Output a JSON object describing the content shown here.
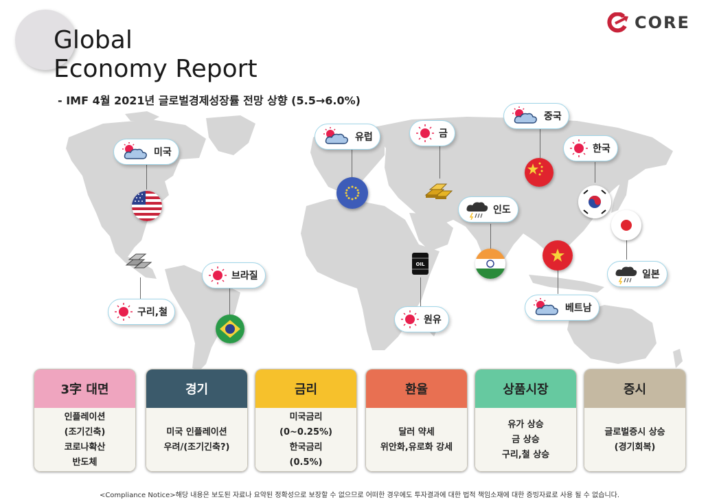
{
  "header": {
    "title_line1": "Global",
    "title_line2": "Economy Report",
    "subtitle": "- IMF 4월 2021년 글로벌경제성장률 전망 상향 (5.5→6.0%)",
    "logo_text": "CORE",
    "logo_color": "#c8233a"
  },
  "map_labels": {
    "usa": "미국",
    "europe": "유럽",
    "gold": "금",
    "china": "중국",
    "korea": "한국",
    "india": "인도",
    "brazil": "브라질",
    "copper_iron": "구리,철",
    "yuan": "원유",
    "vietnam": "베트남",
    "japan": "일본"
  },
  "icons": {
    "usa": "partly-cloudy-icon",
    "europe": "partly-cloudy-icon",
    "gold": "sun-icon",
    "china": "partly-cloudy-icon",
    "korea": "sun-icon",
    "india": "storm-icon",
    "brazil": "sun-icon",
    "copper_iron": "sun-icon",
    "yuan": "sun-icon",
    "vietnam": "partly-cloudy-icon",
    "japan": "storm-icon"
  },
  "cards": [
    {
      "title": "3字 대면",
      "head_color": "#efa5bf",
      "head_text_color": "#222222",
      "lines": [
        "인플레이션",
        "(조기긴축)",
        "코로나확산",
        "반도체"
      ]
    },
    {
      "title": "경기",
      "head_color": "#3b5a6b",
      "head_text_color": "#ffffff",
      "lines": [
        "미국 인플레이션",
        "우려/(조기긴축?)"
      ]
    },
    {
      "title": "금리",
      "head_color": "#f6c12c",
      "head_text_color": "#222222",
      "lines": [
        "미국금리",
        "(0~0.25%)",
        "한국금리",
        "(0.5%)"
      ]
    },
    {
      "title": "환율",
      "head_color": "#e87052",
      "head_text_color": "#222222",
      "lines": [
        "달러 약세",
        "위안화,유로화 강세"
      ]
    },
    {
      "title": "상품시장",
      "head_color": "#66c9a0",
      "head_text_color": "#222222",
      "lines": [
        "유가  상승",
        "금 상승",
        "구리,철 상승"
      ]
    },
    {
      "title": "증시",
      "head_color": "#c5b9a2",
      "head_text_color": "#222222",
      "lines": [
        "글로벌증시 상승",
        "(경기회복)"
      ]
    }
  ],
  "notice": "<Compliance Notice>해당 내용은 보도된 자료나 요약된 정확성으로 보장할 수 없으므로 어떠한 경우에도 투자결과에 대한 법적 책임소재에 대한 증빙자료로 사용 될 수 없습니다.",
  "colors": {
    "map_land": "#d6d6d6",
    "sun": "#e8204e",
    "cloud": "#aac7e8",
    "bubble_border": "#9fd5e8"
  }
}
